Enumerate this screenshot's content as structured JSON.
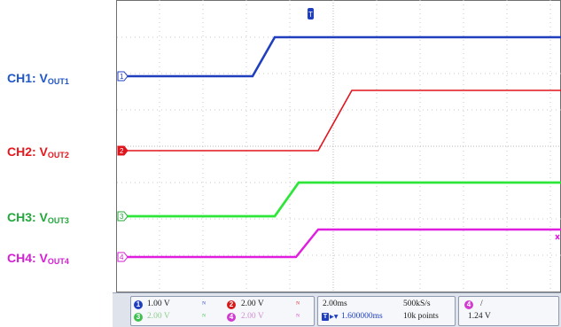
{
  "labels": [
    {
      "text": "CH1: V",
      "sub": "OUT1",
      "color": "#1f56c8"
    },
    {
      "text": "CH2: V",
      "sub": "OUT2",
      "color": "#e8171c"
    },
    {
      "text": "CH3: V",
      "sub": "OUT3",
      "color": "#21a83a"
    },
    {
      "text": "CH4: V",
      "sub": "OUT4",
      "color": "#d61ed6"
    }
  ],
  "markers": {
    "ch1": "1",
    "ch2": "2",
    "ch3": "3",
    "ch4": "4",
    "trigger": "T"
  },
  "footer": {
    "ch1": {
      "num": "1",
      "scale": "1.00 V",
      "color": "#1f3fbf"
    },
    "ch2": {
      "num": "2",
      "scale": "2.00 V",
      "color": "#d61a1a"
    },
    "ch3": {
      "num": "3",
      "scale": "2.00 V",
      "color": "#3fbf4f"
    },
    "ch4": {
      "num": "4",
      "scale": "2.00 V",
      "color": "#d03cd0"
    },
    "coupling_symbol": "ᴺ",
    "timebase": "2.00ms",
    "delay": "1.600000ms",
    "sample_rate": "500kS/s",
    "points": "10k points",
    "trigger_channel": "4",
    "trigger_slope": "/",
    "trigger_level": "1.24 V"
  }
}
